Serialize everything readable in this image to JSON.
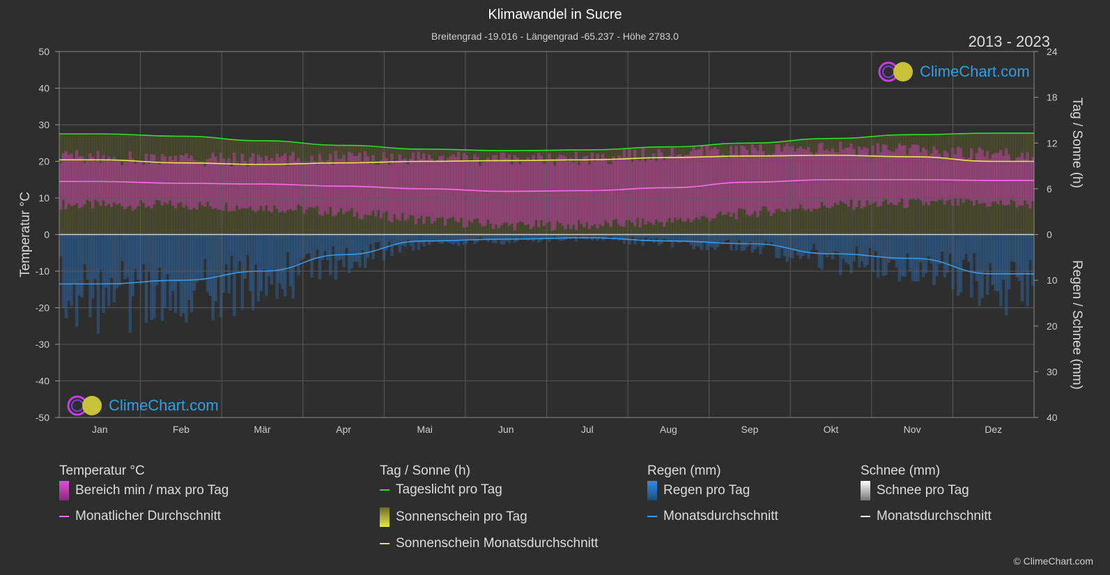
{
  "title": "Klimawandel in Sucre",
  "subtitle": "Breitengrad -19.016 - Längengrad -65.237 - Höhe 2783.0",
  "years": "2013 - 2023",
  "logo_text": "ClimeChart.com",
  "copyright": "© ClimeChart.com",
  "colors": {
    "background": "#2e2e2e",
    "temp_range": "#d63fc2",
    "temp_avg": "#ff6ee8",
    "daylight": "#2ee02e",
    "sunshine": "#b8b83a",
    "sunshine_avg": "#e8e84a",
    "rain": "#2f7fd6",
    "rain_avg": "#3a9ae8",
    "snow_avg": "#ffffff"
  },
  "chart_data": {
    "type": "area",
    "x_categories": [
      "Jan",
      "Feb",
      "Mär",
      "Apr",
      "Mai",
      "Jun",
      "Jul",
      "Aug",
      "Sep",
      "Okt",
      "Nov",
      "Dez"
    ],
    "left_axis": {
      "label": "Temperatur °C",
      "ticks": [
        50,
        40,
        30,
        20,
        10,
        0,
        -10,
        -20,
        -30,
        -40,
        -50
      ],
      "range": [
        -50,
        50
      ]
    },
    "right_axis_top": {
      "label": "Tag / Sonne (h)",
      "ticks": [
        24,
        18,
        12,
        6,
        0
      ],
      "range": [
        0,
        24
      ]
    },
    "right_axis_bottom": {
      "label": "Regen / Schnee (mm)",
      "ticks": [
        0,
        10,
        20,
        30,
        40
      ],
      "range": [
        0,
        40
      ]
    },
    "grid": true,
    "series": [
      {
        "name": "Monatlicher Durchschnitt",
        "unit": "°C",
        "values": [
          14.5,
          14.0,
          13.8,
          13.2,
          12.5,
          11.8,
          12.0,
          12.8,
          14.3,
          15.0,
          15.0,
          14.8
        ]
      },
      {
        "name": "Bereich min / max pro Tag",
        "unit": "°C",
        "min": [
          8.0,
          8.0,
          7.5,
          6.0,
          4.0,
          2.5,
          2.5,
          3.5,
          6.0,
          8.0,
          8.5,
          8.5
        ],
        "max": [
          21.0,
          20.5,
          20.5,
          21.0,
          21.0,
          20.5,
          21.0,
          22.0,
          23.0,
          23.5,
          23.0,
          22.0
        ]
      },
      {
        "name": "Tageslicht pro Tag",
        "unit": "h",
        "values": [
          13.2,
          12.9,
          12.3,
          11.7,
          11.2,
          11.0,
          11.1,
          11.5,
          12.0,
          12.6,
          13.1,
          13.3
        ]
      },
      {
        "name": "Sonnenschein Monatsdurchschnitt",
        "unit": "h",
        "values": [
          9.8,
          9.4,
          9.2,
          9.4,
          9.6,
          9.7,
          9.8,
          10.1,
          10.3,
          10.4,
          10.2,
          9.6
        ]
      },
      {
        "name": "Monatsdurchschnitt (Regen)",
        "unit": "mm",
        "values": [
          10.8,
          10.0,
          8.0,
          4.4,
          1.4,
          1.0,
          0.7,
          1.4,
          2.0,
          4.2,
          5.2,
          8.6
        ]
      },
      {
        "name": "Monatsdurchschnitt (Schnee)",
        "unit": "mm",
        "values": [
          0,
          0,
          0,
          0,
          0,
          0,
          0,
          0,
          0,
          0,
          0,
          0
        ]
      }
    ]
  },
  "legend": {
    "groups": [
      {
        "heading": "Temperatur °C",
        "items": [
          {
            "label": "Bereich min / max pro Tag",
            "kind": "bar",
            "color": "#d63fc2"
          },
          {
            "label": "Monatlicher Durchschnitt",
            "kind": "line",
            "color": "#ff6ee8"
          }
        ]
      },
      {
        "heading": "Tag / Sonne (h)",
        "items": [
          {
            "label": "Tageslicht pro Tag",
            "kind": "line",
            "color": "#2ee02e"
          },
          {
            "label": "Sonnenschein pro Tag",
            "kind": "bar",
            "color": "#c8c83c"
          },
          {
            "label": "Sonnenschein Monatsdurchschnitt",
            "kind": "line",
            "color": "#e8e84a"
          }
        ]
      },
      {
        "heading": "Regen (mm)",
        "items": [
          {
            "label": "Regen pro Tag",
            "kind": "bar",
            "color": "#2f7fd6"
          },
          {
            "label": "Monatsdurchschnitt",
            "kind": "line",
            "color": "#3a9ae8"
          }
        ]
      },
      {
        "heading": "Schnee (mm)",
        "items": [
          {
            "label": "Schnee pro Tag",
            "kind": "bar",
            "color": "#dddddd"
          },
          {
            "label": "Monatsdurchschnitt",
            "kind": "line",
            "color": "#ffffff"
          }
        ]
      }
    ]
  }
}
